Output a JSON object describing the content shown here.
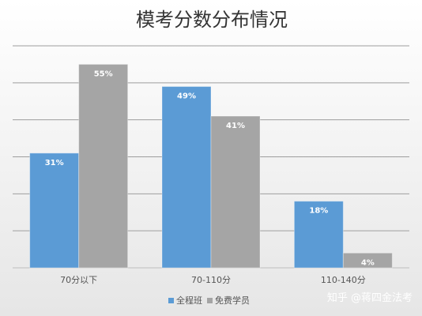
{
  "chart_data": {
    "type": "bar",
    "title": "模考分数分布情况",
    "categories": [
      "70分以下",
      "70-110分",
      "110-140分"
    ],
    "series": [
      {
        "name": "全程班",
        "values": [
          31,
          49,
          18
        ],
        "labels": [
          "31%",
          "49%",
          "18%"
        ],
        "color": "#5B9BD5"
      },
      {
        "name": "免费学员",
        "values": [
          55,
          41,
          4
        ],
        "labels": [
          "55%",
          "41%",
          "4%"
        ],
        "color": "#A5A5A5"
      }
    ],
    "unit": "%",
    "ylim": [
      0,
      60
    ],
    "grid": true,
    "legend_position": "bottom-left"
  },
  "watermark": "知乎 @蒋四金法考",
  "colors": {
    "background_top": "#ffffff",
    "background_bottom": "#e6e6e6",
    "gridline": "#9e9e9e",
    "axis": "#bfbfbf"
  }
}
